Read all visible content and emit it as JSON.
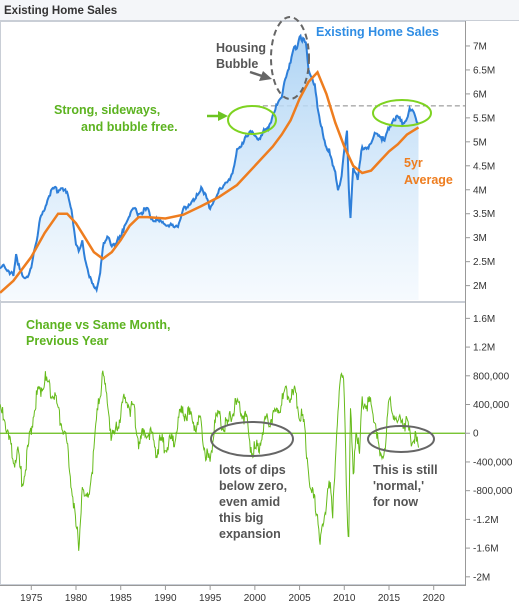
{
  "window_title": "Existing Home Sales",
  "colors": {
    "sales": "#2e7fd9",
    "average": "#ee7d1f",
    "change": "#66bb1a",
    "zero_line": "#66bb1a",
    "annotation_green": "#5cb320",
    "annotation_gray": "#555555",
    "annotation_blue": "#2f8de4"
  },
  "chart_data": [
    {
      "type": "area",
      "ylim": [
        1700000,
        7500000
      ],
      "xlim": [
        1971.5,
        2023.5
      ],
      "x_ticks": [
        "1975",
        "1980",
        "1985",
        "1990",
        "1995",
        "2000",
        "2005",
        "2010",
        "2015",
        "2020"
      ],
      "y_ticks": [
        "2M",
        "2.5M",
        "3M",
        "3.5M",
        "4M",
        "4.5M",
        "5M",
        "5.5M",
        "6M",
        "6.5M",
        "7M"
      ],
      "reference_line": {
        "y": 5750000,
        "style": "dashed"
      },
      "series": [
        {
          "name": "Existing Home Sales",
          "style": "area",
          "x": [
            1971.5,
            1972,
            1972.5,
            1973,
            1973.3,
            1973.7,
            1974,
            1974.3,
            1974.7,
            1975,
            1975.3,
            1975.7,
            1976,
            1976.5,
            1977,
            1977.5,
            1978,
            1978.5,
            1979,
            1979.5,
            1980,
            1980.3,
            1980.7,
            1981,
            1981.5,
            1982,
            1982.3,
            1982.7,
            1983,
            1983.5,
            1984,
            1984.5,
            1985,
            1985.5,
            1986,
            1986.5,
            1987,
            1987.5,
            1988,
            1988.5,
            1989,
            1989.5,
            1990,
            1990.5,
            1991,
            1991.5,
            1992,
            1992.5,
            1993,
            1993.5,
            1994,
            1994.5,
            1995,
            1995.5,
            1996,
            1996.5,
            1997,
            1997.5,
            1998,
            1998.5,
            1999,
            1999.5,
            2000,
            2000.5,
            2001,
            2001.5,
            2002,
            2002.5,
            2003,
            2003.3,
            2003.7,
            2004,
            2004.3,
            2004.7,
            2005,
            2005.3,
            2005.7,
            2006,
            2006.3,
            2006.7,
            2007,
            2007.3,
            2007.7,
            2008,
            2008.3,
            2008.7,
            2009,
            2009.3,
            2009.7,
            2010,
            2010.3,
            2010.5,
            2010.7,
            2011,
            2011.5,
            2012,
            2012.5,
            2013,
            2013.5,
            2014,
            2014.5,
            2015,
            2015.5,
            2016,
            2016.5,
            2017,
            2017.3,
            2017.7,
            2018,
            2018.3
          ],
          "y": [
            2300000,
            2450000,
            2300000,
            2200000,
            2600000,
            2400000,
            2250000,
            2100000,
            2200000,
            2400000,
            2750000,
            3000000,
            3400000,
            3600000,
            3900000,
            4000000,
            4000000,
            4050000,
            3900000,
            3600000,
            2900000,
            2700000,
            2900000,
            2600000,
            2200000,
            1950000,
            1900000,
            2300000,
            2800000,
            3000000,
            2850000,
            2900000,
            3000000,
            3300000,
            3500000,
            3600000,
            3500000,
            3550000,
            3600000,
            3400000,
            3350000,
            3300000,
            3300000,
            3250000,
            3200000,
            3300000,
            3600000,
            3600000,
            3800000,
            3850000,
            4000000,
            3950000,
            3600000,
            3750000,
            4050000,
            4050000,
            4150000,
            4400000,
            4800000,
            4900000,
            5150000,
            5200000,
            5100000,
            5100000,
            5200000,
            5250000,
            5600000,
            5750000,
            5900000,
            6300000,
            6500000,
            6650000,
            6900000,
            7000000,
            7250000,
            7150000,
            7050000,
            6500000,
            6400000,
            6200000,
            5700000,
            5400000,
            5100000,
            4900000,
            4800000,
            4500000,
            4350000,
            4000000,
            4300000,
            4800000,
            5200000,
            4000000,
            3450000,
            4500000,
            4200000,
            4900000,
            4900000,
            4950000,
            5200000,
            5150000,
            5000000,
            5300000,
            5500000,
            5500000,
            5400000,
            5500000,
            5650000,
            5600000,
            5500000,
            5400000
          ]
        },
        {
          "name": "5yr Average",
          "style": "line",
          "x": [
            1971.5,
            1973,
            1975,
            1976.5,
            1978,
            1979,
            1980,
            1981,
            1982,
            1983,
            1984,
            1985,
            1986,
            1987,
            1988,
            1990,
            1992,
            1994,
            1996,
            1998,
            2000,
            2002,
            2003,
            2004,
            2005,
            2006,
            2007,
            2008,
            2009,
            2010,
            2011,
            2012,
            2013,
            2014,
            2015,
            2016,
            2017,
            2018.3
          ],
          "y": [
            1850000,
            2100000,
            2600000,
            3100000,
            3500000,
            3500000,
            3300000,
            3000000,
            2700000,
            2560000,
            2700000,
            2950000,
            3250000,
            3430000,
            3430000,
            3400000,
            3480000,
            3660000,
            3850000,
            4100000,
            4500000,
            4900000,
            5150000,
            5450000,
            5900000,
            6250000,
            6450000,
            6000000,
            5400000,
            4900000,
            4500000,
            4350000,
            4400000,
            4600000,
            4800000,
            4950000,
            5150000,
            5300000
          ]
        }
      ],
      "annotations": {
        "title": "Existing Home Sales",
        "bubble": [
          "Housing",
          "Bubble"
        ],
        "sideways": [
          "Strong, sideways,",
          "and bubble free."
        ],
        "average": [
          "5yr",
          "Average"
        ]
      }
    },
    {
      "type": "line",
      "ylim": [
        -2100000,
        1800000
      ],
      "y_ticks": [
        "1.6M",
        "1.2M",
        "800,000",
        "400,000",
        "0",
        "-400,000",
        "-800,000",
        "-1.2M",
        "-1.6M",
        "-2M"
      ],
      "reference_line": {
        "y": 0,
        "style": "solid"
      },
      "series": [
        {
          "name": "Change vs Same Month, Previous Year",
          "x": [
            1971.5,
            1972,
            1972.5,
            1973,
            1973.5,
            1974,
            1974.5,
            1975,
            1975.5,
            1976,
            1976.5,
            1977,
            1977.5,
            1978,
            1978.5,
            1979,
            1979.5,
            1980,
            1980.3,
            1980.7,
            1981,
            1981.5,
            1982,
            1982.5,
            1983,
            1983.5,
            1984,
            1984.5,
            1985,
            1985.5,
            1986,
            1986.5,
            1987,
            1987.5,
            1988,
            1988.5,
            1989,
            1989.5,
            1990,
            1990.5,
            1991,
            1991.5,
            1992,
            1992.5,
            1993,
            1993.5,
            1994,
            1994.5,
            1995,
            1995.5,
            1996,
            1996.5,
            1997,
            1997.5,
            1998,
            1998.5,
            1999,
            1999.5,
            2000,
            2000.5,
            2001,
            2001.5,
            2002,
            2002.5,
            2003,
            2003.5,
            2004,
            2004.5,
            2005,
            2005.5,
            2006,
            2006.3,
            2006.7,
            2007,
            2007.3,
            2007.7,
            2008,
            2008.3,
            2008.7,
            2009,
            2009.3,
            2009.7,
            2010,
            2010.3,
            2010.5,
            2010.7,
            2011,
            2011.3,
            2011.7,
            2012,
            2012.5,
            2013,
            2013.5,
            2014,
            2014.5,
            2015,
            2015.5,
            2016,
            2016.5,
            2017,
            2017.5,
            2018,
            2018.3
          ],
          "y": [
            300000,
            200000,
            -100000,
            -400000,
            -300000,
            -700000,
            -350000,
            100000,
            450000,
            600000,
            750000,
            650000,
            550000,
            300000,
            100000,
            -200000,
            -700000,
            -1300000,
            -1550000,
            -700000,
            -1000000,
            -800000,
            -300000,
            500000,
            750000,
            500000,
            -100000,
            50000,
            250000,
            500000,
            350000,
            300000,
            -100000,
            -50000,
            50000,
            -50000,
            -250000,
            -100000,
            -200000,
            -150000,
            -100000,
            200000,
            300000,
            250000,
            200000,
            100000,
            150000,
            -300000,
            -400000,
            200000,
            250000,
            100000,
            100000,
            350000,
            400000,
            300000,
            200000,
            -150000,
            -250000,
            -150000,
            100000,
            200000,
            200000,
            300000,
            400000,
            600000,
            500000,
            550000,
            300000,
            100000,
            -500000,
            -800000,
            -1000000,
            -1100000,
            -1500000,
            -1300000,
            -900000,
            -600000,
            -1200000,
            -300000,
            400000,
            800000,
            600000,
            -1000000,
            -1500000,
            300000,
            -600000,
            100000,
            -300000,
            500000,
            400000,
            400000,
            150000,
            -400000,
            -200000,
            400000,
            300000,
            100000,
            200000,
            100000,
            -100000,
            -100000,
            -200000
          ]
        }
      ],
      "annotations": {
        "title": [
          "Change vs Same Month,",
          "Previous Year"
        ],
        "dips": [
          "lots of dips",
          "below zero,",
          "even amid",
          "this big",
          "expansion"
        ],
        "normal": [
          "This is still",
          "'normal,'",
          "for now"
        ]
      }
    }
  ]
}
